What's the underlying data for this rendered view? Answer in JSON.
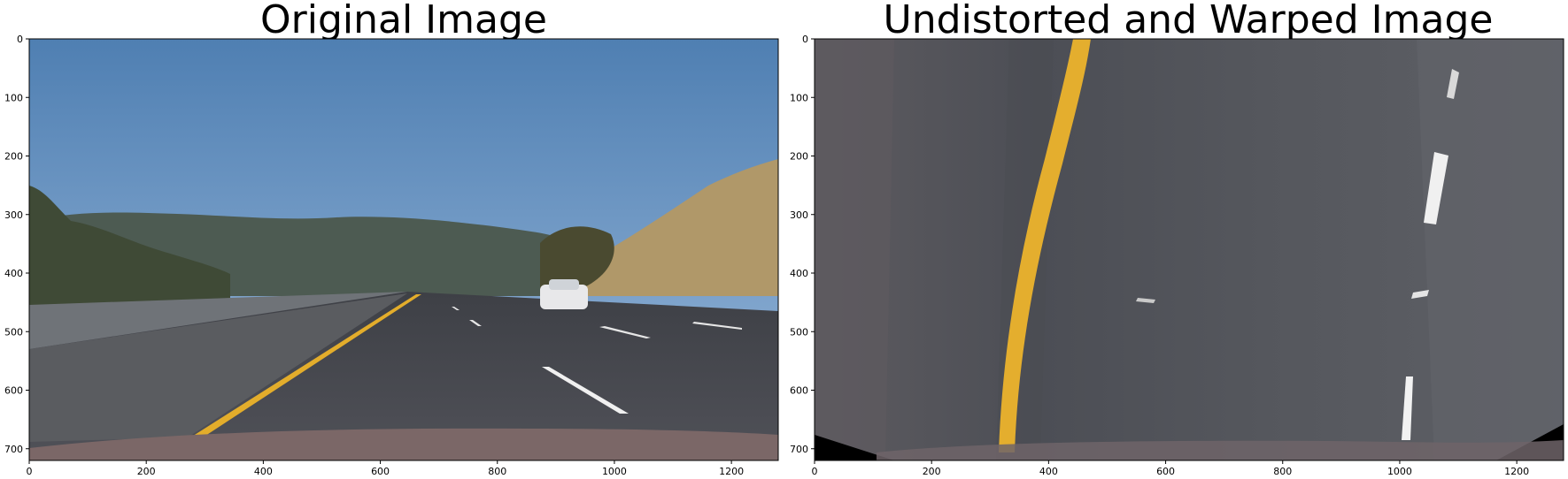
{
  "figure": {
    "panels": [
      {
        "title": "Original Image",
        "x_ticks": [
          "0",
          "200",
          "400",
          "600",
          "800",
          "1000",
          "1200"
        ],
        "y_ticks": [
          "0",
          "100",
          "200",
          "300",
          "400",
          "500",
          "600",
          "700"
        ]
      },
      {
        "title": "Undistorted and Warped Image",
        "x_ticks": [
          "0",
          "200",
          "400",
          "600",
          "800",
          "1000",
          "1200"
        ],
        "y_ticks": [
          "0",
          "100",
          "200",
          "300",
          "400",
          "500",
          "600",
          "700"
        ]
      }
    ],
    "image_width": 1280,
    "image_height": 720,
    "x_tick_values": [
      0,
      200,
      400,
      600,
      800,
      1000,
      1200
    ],
    "y_tick_values": [
      0,
      100,
      200,
      300,
      400,
      500,
      600,
      700
    ]
  },
  "colors": {
    "sky_top": "#5a86b6",
    "sky_bottom": "#8fb3d8",
    "hills": "#4b5a4e",
    "grass_hill": "#b39a6c",
    "road": "#45474d",
    "yellow_line": "#e6b22e",
    "white_line": "#f2f2f2",
    "hood": "#7e6a6a",
    "warped_road": "#595a60"
  }
}
